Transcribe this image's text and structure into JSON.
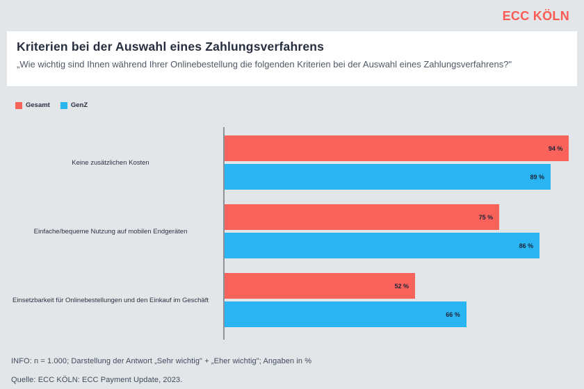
{
  "logo": "ECC KÖLN",
  "header": {
    "title": "Kriterien bei der Auswahl eines Zahlungsverfahrens",
    "subtitle": "„Wie wichtig sind Ihnen während Ihrer Onlinebestellung die folgenden Kriterien bei der Auswahl eines Zahlungsverfahrens?\""
  },
  "legend": [
    {
      "label": "Gesamt",
      "color": "#fa635c"
    },
    {
      "label": "GenZ",
      "color": "#2ab4f2"
    }
  ],
  "chart_data": {
    "type": "bar",
    "orientation": "horizontal",
    "title": "Kriterien bei der Auswahl eines Zahlungsverfahrens",
    "categories": [
      "Keine zusätzlichen Kosten",
      "Einfache/bequeme Nutzung auf mobilen Endgeräten",
      "Einsetzbarkeit für Onlinebestellungen und den Einkauf im Geschäft"
    ],
    "series": [
      {
        "name": "Gesamt",
        "color": "#fa635c",
        "values": [
          94,
          75,
          52
        ]
      },
      {
        "name": "GenZ",
        "color": "#2ab4f2",
        "values": [
          89,
          86,
          66
        ]
      }
    ],
    "value_suffix": " %",
    "xlim": [
      0,
      100
    ],
    "grid": false,
    "legend_position": "top-left"
  },
  "footer": {
    "info": "INFO: n = 1.000; Darstellung der Antwort „Sehr wichtig\" + „Eher wichtig\"; Angaben in %",
    "source": "Quelle: ECC KÖLN: ECC Payment Update, 2023."
  },
  "colors": {
    "background": "#e3e6e9",
    "card": "#ffffff",
    "accent_red": "#fa635c",
    "accent_blue": "#2ab4f2",
    "logo_red": "#fc5b54",
    "axis_gray": "#8b9199"
  }
}
